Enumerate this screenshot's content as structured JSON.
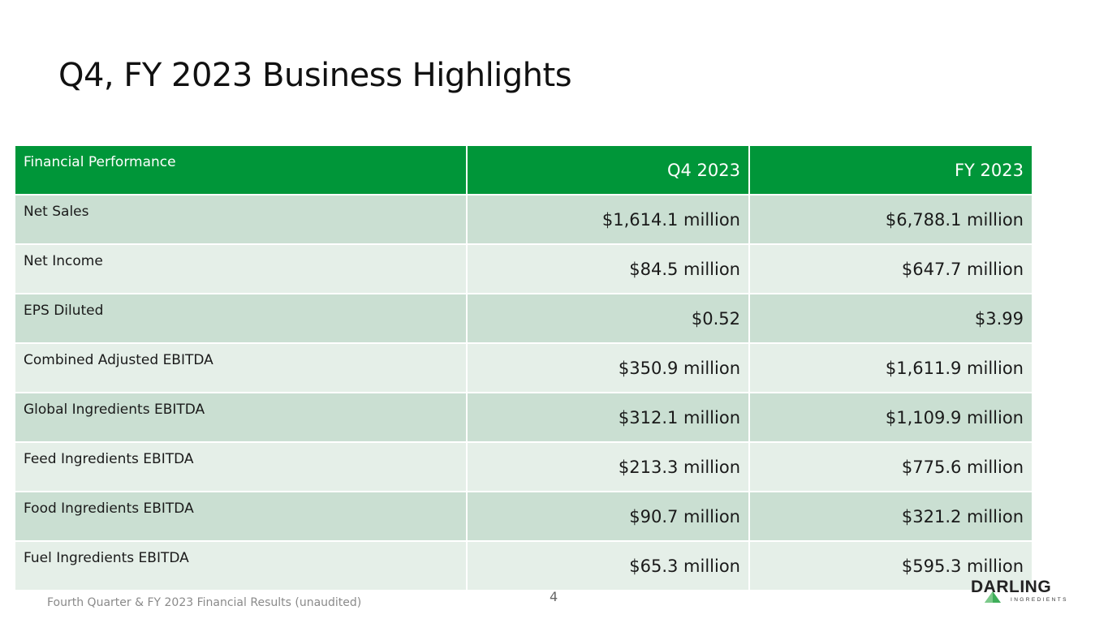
{
  "title": "Q4, FY 2023 Business Highlights",
  "table": {
    "headers": [
      "Financial Performance",
      "Q4 2023",
      "FY 2023"
    ],
    "rows": [
      [
        "Net Sales",
        "$1,614.1 million",
        "$6,788.1 million"
      ],
      [
        "Net Income",
        "$84.5 million",
        "$647.7 million"
      ],
      [
        "EPS Diluted",
        "$0.52",
        "$3.99"
      ],
      [
        "Combined Adjusted EBITDA",
        "$350.9 million",
        "$1,611.9 million"
      ],
      [
        "Global Ingredients EBITDA",
        "$312.1 million",
        "$1,109.9 million"
      ],
      [
        "Feed Ingredients EBITDA",
        "$213.3 million",
        "$775.6 million"
      ],
      [
        "Food Ingredients EBITDA",
        "$90.7 million",
        "$321.2 million"
      ],
      [
        "Fuel Ingredients EBITDA",
        "$65.3 million",
        "$595.3 million"
      ]
    ]
  },
  "footer": {
    "text": "Fourth Quarter & FY 2023 Financial Results (unaudited)",
    "page": "4"
  },
  "logo": {
    "word": "DARLING",
    "sub": "INGREDIENTS"
  },
  "colors": {
    "header": "#009639",
    "row_dark": "#cadfd2",
    "row_light": "#e5efe8"
  }
}
